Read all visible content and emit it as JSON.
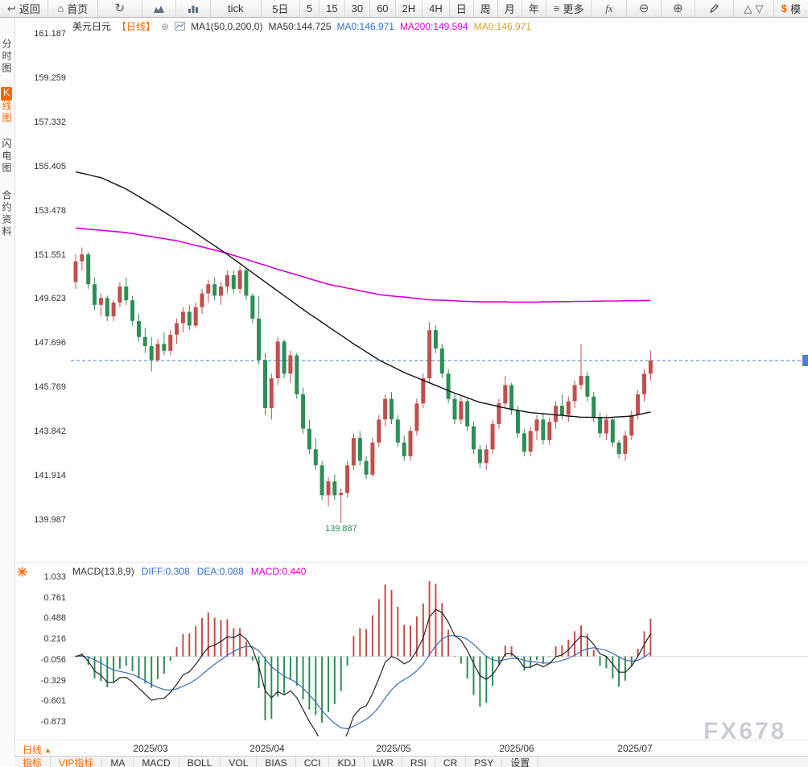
{
  "toolbar": {
    "back": "返回",
    "home": "首页",
    "tick": "tick",
    "five_day": "5日",
    "timeframes": [
      "5",
      "15",
      "30",
      "60",
      "2H",
      "4H",
      "日",
      "周",
      "月",
      "年"
    ],
    "more": "更多",
    "fx": "fx",
    "sim": "模"
  },
  "icons": {
    "back": "↩",
    "home": "⌂",
    "refresh": "↻",
    "more": "≡",
    "plus": "⊕",
    "zoom_in": "⊕",
    "zoom_out": "⊖",
    "tri_up": "△",
    "tri_down": "▽",
    "dollar": "$",
    "period_arrow": "▲"
  },
  "sidebar": {
    "items": [
      {
        "label": "分时图",
        "active": false
      },
      {
        "label": "K线图",
        "active": true
      },
      {
        "label": "闪电图",
        "active": false
      },
      {
        "label": "合约资料",
        "active": false
      }
    ]
  },
  "price_pane": {
    "title": "美元日元",
    "period_tag": "【日线】",
    "ma_settings": "MA1(50,0,200,0)",
    "ma_values": [
      {
        "label": "MA50:144.725"
      },
      {
        "label": "MA0:146.971"
      },
      {
        "label": "MA200:149.594"
      },
      {
        "label": "MA0:146.971"
      }
    ],
    "y_labels": [
      "161.187",
      "159.259",
      "157.332",
      "155.405",
      "153.478",
      "151.551",
      "149.623",
      "147.696",
      "145.769",
      "143.842",
      "141.914",
      "139.987"
    ],
    "low_label": "139.887"
  },
  "macd_pane": {
    "header": "MACD(13,8,9)",
    "diff_label": "DIFF:0.308",
    "dea_label": "DEA:0.088",
    "macd_label": "MACD:0.440",
    "y_labels": [
      "1.033",
      "0.761",
      "0.488",
      "0.216",
      "-0.056",
      "-0.329",
      "-0.601",
      "-0.873"
    ]
  },
  "x_axis": {
    "labels": [
      "2025/03",
      "2025/04",
      "2025/05",
      "2025/06",
      "2025/07"
    ],
    "positions": [
      187,
      332,
      489,
      642,
      789
    ]
  },
  "bottom": {
    "period_selector": "日线",
    "tabs": [
      {
        "label": "指标",
        "accent": true
      },
      {
        "label": "VIP指标",
        "accent": true
      },
      {
        "label": "MA",
        "accent": false
      },
      {
        "label": "MACD",
        "accent": false
      },
      {
        "label": "BOLL",
        "accent": false
      },
      {
        "label": "VOL",
        "accent": false
      },
      {
        "label": "BIAS",
        "accent": false
      },
      {
        "label": "CCI",
        "accent": false
      },
      {
        "label": "KDJ",
        "accent": false
      },
      {
        "label": "LWR",
        "accent": false
      },
      {
        "label": "RSI",
        "accent": false
      },
      {
        "label": "CR",
        "accent": false
      },
      {
        "label": "PSY",
        "accent": false
      },
      {
        "label": "设置",
        "accent": false
      }
    ]
  },
  "watermark": "FX678",
  "colors": {
    "up": "#c0504d",
    "down": "#2e8e55",
    "ma50": "#111111",
    "ma200": "#d800d8",
    "accent_orange": "#ff6600",
    "blue": "#2f6fce",
    "magenta": "#d800d8",
    "gold": "#e0a030",
    "dashed": "#4a7fd4"
  },
  "chart_data": {
    "type": "candlestick",
    "instrument": "美元日元",
    "period": "日线",
    "price_axis": {
      "min": 139.987,
      "max": 161.187,
      "tick_step": 1.92733
    },
    "x_labels": [
      "2025/03",
      "2025/04",
      "2025/05",
      "2025/06",
      "2025/07"
    ],
    "current_price": 146.971,
    "low_marker": 139.887,
    "ma50_last": 144.725,
    "ma200_last": 149.594,
    "candles": [
      [
        150.4,
        151.6,
        150.1,
        151.3
      ],
      [
        151.3,
        151.9,
        150.9,
        151.6
      ],
      [
        151.6,
        151.7,
        150.1,
        150.3
      ],
      [
        150.3,
        150.6,
        149.2,
        149.4
      ],
      [
        149.4,
        149.9,
        148.9,
        149.7
      ],
      [
        149.7,
        149.8,
        148.7,
        148.9
      ],
      [
        148.9,
        149.6,
        148.7,
        149.5
      ],
      [
        149.5,
        150.4,
        149.3,
        150.2
      ],
      [
        150.2,
        150.6,
        149.4,
        149.6
      ],
      [
        149.6,
        149.8,
        148.5,
        148.7
      ],
      [
        148.7,
        149.0,
        147.8,
        148.0
      ],
      [
        148.0,
        148.4,
        147.3,
        147.6
      ],
      [
        147.6,
        148.0,
        146.5,
        147.0
      ],
      [
        147.0,
        147.9,
        146.9,
        147.7
      ],
      [
        147.7,
        148.2,
        147.2,
        147.4
      ],
      [
        147.4,
        148.3,
        147.2,
        148.1
      ],
      [
        148.1,
        148.8,
        147.7,
        148.6
      ],
      [
        148.6,
        149.3,
        148.2,
        149.1
      ],
      [
        149.1,
        149.4,
        148.3,
        148.5
      ],
      [
        148.5,
        149.5,
        148.4,
        149.3
      ],
      [
        149.3,
        150.1,
        149.0,
        149.9
      ],
      [
        149.9,
        150.5,
        149.5,
        150.3
      ],
      [
        150.3,
        150.6,
        149.6,
        149.8
      ],
      [
        149.8,
        150.4,
        149.4,
        150.2
      ],
      [
        150.2,
        150.9,
        149.9,
        150.7
      ],
      [
        150.7,
        150.9,
        149.9,
        150.1
      ],
      [
        150.1,
        151.1,
        149.9,
        150.9
      ],
      [
        150.9,
        151.0,
        149.6,
        149.8
      ],
      [
        149.8,
        149.9,
        148.6,
        148.8
      ],
      [
        148.8,
        149.8,
        146.8,
        147.0
      ],
      [
        147.0,
        147.3,
        144.6,
        144.9
      ],
      [
        144.9,
        146.4,
        144.4,
        146.2
      ],
      [
        146.2,
        148.0,
        145.9,
        147.8
      ],
      [
        147.8,
        147.9,
        146.2,
        146.4
      ],
      [
        146.4,
        147.4,
        146.0,
        147.2
      ],
      [
        147.2,
        147.3,
        145.3,
        145.5
      ],
      [
        145.5,
        145.8,
        143.8,
        144.0
      ],
      [
        144.0,
        144.4,
        142.9,
        143.1
      ],
      [
        143.1,
        143.6,
        142.2,
        142.4
      ],
      [
        142.4,
        142.6,
        140.9,
        141.1
      ],
      [
        141.1,
        141.9,
        140.6,
        141.7
      ],
      [
        141.7,
        142.0,
        140.9,
        141.1
      ],
      [
        141.1,
        141.4,
        139.887,
        141.2
      ],
      [
        141.2,
        142.6,
        141.0,
        142.4
      ],
      [
        142.4,
        143.8,
        142.2,
        143.6
      ],
      [
        143.6,
        143.9,
        142.4,
        142.6
      ],
      [
        142.6,
        142.8,
        141.8,
        142.0
      ],
      [
        142.0,
        143.6,
        141.9,
        143.4
      ],
      [
        143.4,
        144.6,
        143.2,
        144.4
      ],
      [
        144.4,
        145.5,
        144.1,
        145.3
      ],
      [
        145.3,
        145.6,
        144.2,
        144.4
      ],
      [
        144.4,
        144.6,
        143.2,
        143.4
      ],
      [
        143.4,
        143.7,
        142.6,
        142.8
      ],
      [
        142.8,
        144.1,
        142.6,
        143.9
      ],
      [
        143.9,
        145.3,
        143.7,
        145.1
      ],
      [
        145.1,
        146.4,
        144.9,
        146.2
      ],
      [
        146.2,
        148.65,
        146.0,
        148.3
      ],
      [
        148.3,
        148.5,
        147.3,
        147.5
      ],
      [
        147.5,
        147.7,
        146.2,
        146.4
      ],
      [
        146.4,
        146.6,
        145.1,
        145.3
      ],
      [
        145.3,
        145.5,
        144.2,
        144.4
      ],
      [
        144.4,
        145.4,
        144.2,
        145.2
      ],
      [
        145.2,
        145.3,
        143.9,
        144.1
      ],
      [
        144.1,
        144.3,
        142.9,
        143.1
      ],
      [
        143.1,
        143.3,
        142.3,
        142.5
      ],
      [
        142.5,
        143.3,
        142.2,
        143.1
      ],
      [
        143.1,
        144.4,
        142.9,
        144.2
      ],
      [
        144.2,
        145.3,
        144.0,
        145.1
      ],
      [
        145.1,
        146.3,
        144.9,
        145.9
      ],
      [
        145.9,
        146.0,
        144.6,
        144.8
      ],
      [
        144.8,
        145.0,
        143.6,
        143.8
      ],
      [
        143.8,
        144.0,
        142.8,
        143.0
      ],
      [
        143.0,
        144.1,
        142.8,
        143.9
      ],
      [
        143.9,
        144.6,
        143.5,
        144.4
      ],
      [
        144.4,
        144.7,
        143.3,
        143.5
      ],
      [
        143.5,
        144.5,
        143.3,
        144.3
      ],
      [
        144.3,
        145.2,
        144.0,
        145.0
      ],
      [
        145.0,
        145.5,
        144.4,
        144.6
      ],
      [
        144.6,
        145.4,
        144.3,
        145.2
      ],
      [
        145.2,
        146.1,
        144.9,
        145.9
      ],
      [
        145.9,
        147.7,
        145.7,
        146.3
      ],
      [
        146.3,
        146.5,
        145.2,
        145.4
      ],
      [
        145.4,
        145.6,
        144.3,
        144.5
      ],
      [
        144.5,
        144.7,
        143.6,
        143.8
      ],
      [
        143.8,
        144.6,
        143.5,
        144.4
      ],
      [
        144.4,
        144.5,
        143.2,
        143.4
      ],
      [
        143.4,
        143.5,
        142.7,
        142.9
      ],
      [
        142.9,
        143.9,
        142.6,
        143.7
      ],
      [
        143.7,
        144.8,
        143.5,
        144.6
      ],
      [
        144.6,
        145.7,
        144.4,
        145.5
      ],
      [
        145.5,
        146.6,
        145.2,
        146.4
      ],
      [
        146.4,
        147.4,
        146.1,
        146.971
      ]
    ],
    "ma50": [
      155.2,
      155.14,
      155.08,
      155.01,
      154.95,
      154.83,
      154.7,
      154.58,
      154.45,
      154.29,
      154.13,
      153.96,
      153.8,
      153.63,
      153.45,
      153.28,
      153.1,
      152.91,
      152.73,
      152.54,
      152.35,
      152.16,
      151.98,
      151.79,
      151.6,
      151.4,
      151.2,
      151.0,
      150.8,
      150.6,
      150.4,
      150.2,
      150.0,
      149.8,
      149.6,
      149.4,
      149.2,
      149.01,
      148.83,
      148.64,
      148.45,
      148.26,
      148.08,
      147.89,
      147.7,
      147.53,
      147.35,
      147.18,
      147.0,
      146.86,
      146.73,
      146.59,
      146.45,
      146.34,
      146.23,
      146.11,
      146.0,
      145.89,
      145.78,
      145.66,
      145.55,
      145.45,
      145.35,
      145.25,
      145.15,
      145.09,
      145.03,
      144.96,
      144.9,
      144.85,
      144.8,
      144.75,
      144.7,
      144.68,
      144.65,
      144.63,
      144.6,
      144.58,
      144.55,
      144.53,
      144.5,
      144.5,
      144.49,
      144.49,
      144.48,
      144.5,
      144.52,
      144.53,
      144.55,
      144.61,
      144.67,
      144.73
    ],
    "ma200": [
      152.75,
      152.73,
      152.7,
      152.68,
      152.65,
      152.63,
      152.6,
      152.58,
      152.55,
      152.51,
      152.46,
      152.42,
      152.38,
      152.33,
      152.29,
      152.24,
      152.2,
      152.13,
      152.06,
      151.99,
      151.93,
      151.86,
      151.79,
      151.72,
      151.65,
      151.56,
      151.48,
      151.39,
      151.3,
      151.21,
      151.13,
      151.04,
      150.95,
      150.87,
      150.79,
      150.71,
      150.63,
      150.54,
      150.46,
      150.38,
      150.3,
      150.24,
      150.19,
      150.13,
      150.08,
      150.02,
      149.96,
      149.91,
      149.85,
      149.82,
      149.79,
      149.76,
      149.74,
      149.71,
      149.68,
      149.65,
      149.62,
      149.61,
      149.6,
      149.59,
      149.58,
      149.56,
      149.55,
      149.54,
      149.53,
      149.53,
      149.53,
      149.53,
      149.53,
      149.52,
      149.52,
      149.52,
      149.52,
      149.52,
      149.53,
      149.53,
      149.54,
      149.54,
      149.54,
      149.55,
      149.55,
      149.55,
      149.56,
      149.56,
      149.57,
      149.57,
      149.57,
      149.58,
      149.58,
      149.58,
      149.59,
      149.59
    ],
    "macd": {
      "params": [
        13,
        8,
        9
      ],
      "diff": 0.308,
      "dea": 0.088,
      "macd": 0.44,
      "axis": {
        "min": -0.873,
        "max": 1.033
      }
    }
  }
}
